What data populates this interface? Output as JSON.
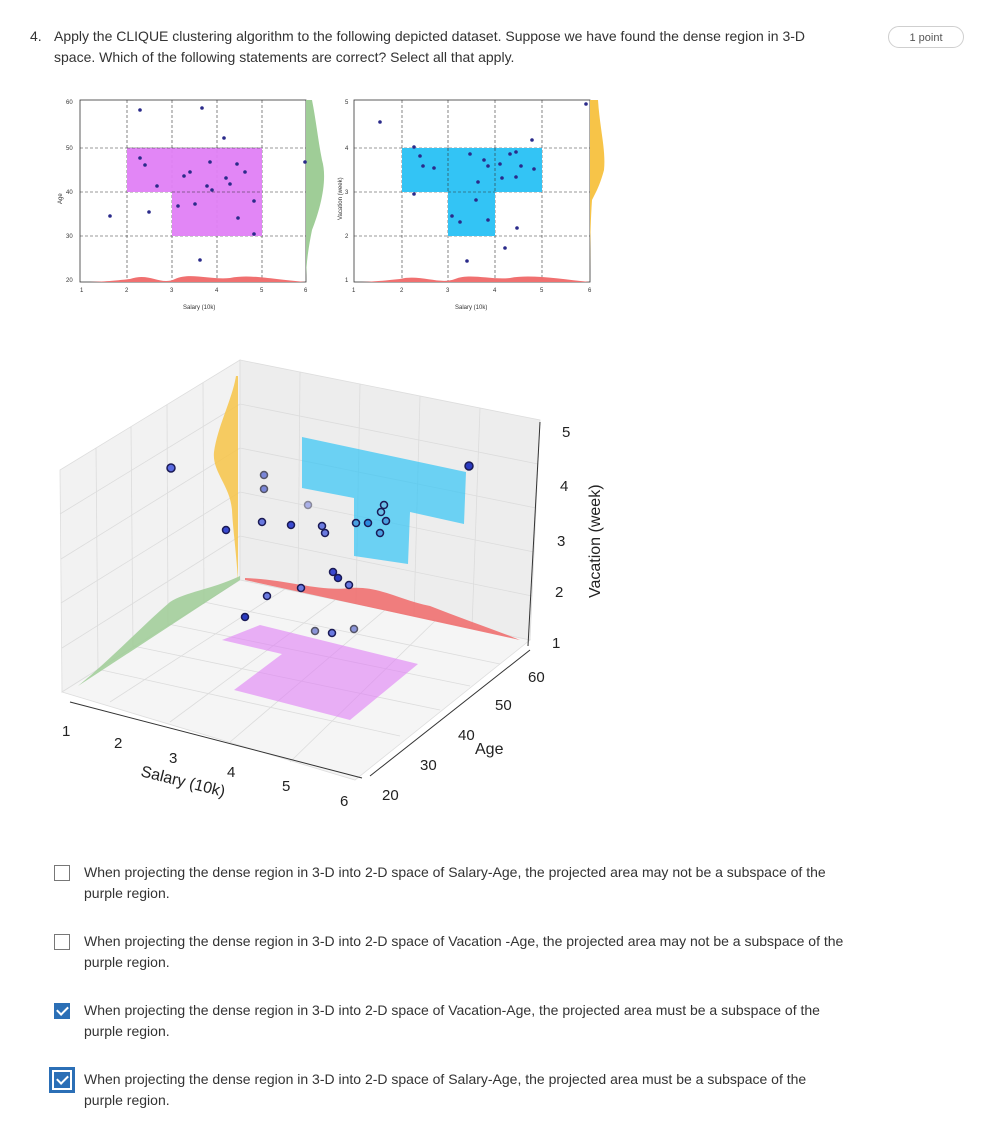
{
  "question": {
    "number": "4.",
    "text": "Apply the CLIQUE clustering algorithm to the following depicted dataset. Suppose we have found the dense region in 3-D space. Which of the following statements are correct? Select all that apply.",
    "points": "1 point"
  },
  "figure": {
    "left_plot": {
      "xlabel": "Salary (10k)",
      "ylabel": "Age",
      "right_label": "Vacation (week)",
      "xticks": [
        "1",
        "2",
        "3",
        "4",
        "5",
        "6"
      ],
      "yticks": [
        "60",
        "50",
        "40",
        "30",
        "20"
      ]
    },
    "right_plot": {
      "xlabel": "Salary (10k)",
      "yticks": [
        "5",
        "4",
        "3",
        "2",
        "1"
      ],
      "xticks": [
        "1",
        "2",
        "3",
        "4",
        "5",
        "6"
      ]
    },
    "plot3d": {
      "salary_label": "Salary (10k)",
      "age_label": "Age",
      "vacation_label": "Vacation (week)",
      "salary_ticks": [
        "1",
        "2",
        "3",
        "4",
        "5",
        "6"
      ],
      "age_ticks": [
        "20",
        "30",
        "40",
        "50",
        "60"
      ],
      "vacation_ticks": [
        "1",
        "2",
        "3",
        "4",
        "5"
      ]
    },
    "colors": {
      "purple": "#e07ff5",
      "blue": "#33c4f5",
      "red": "#f07070",
      "green": "#9fcd97",
      "yellow": "#f7c448",
      "point": "#2a2a8a"
    }
  },
  "options": [
    {
      "text": "When projecting the dense region in 3-D into 2-D space of Salary-Age, the projected area may not be a subspace of the purple region.",
      "checked": false
    },
    {
      "text": "When projecting the dense region in 3-D into 2-D space of Vacation -Age, the projected area may not be a subspace of the purple region.",
      "checked": false
    },
    {
      "text": "When projecting the dense region in 3-D into 2-D space of Vacation-Age, the projected area must be a subspace of the purple region.",
      "checked": true
    },
    {
      "text": "When projecting the dense region in 3-D into 2-D space of Salary-Age, the projected area must be a subspace of the purple region.",
      "checked": true
    }
  ]
}
